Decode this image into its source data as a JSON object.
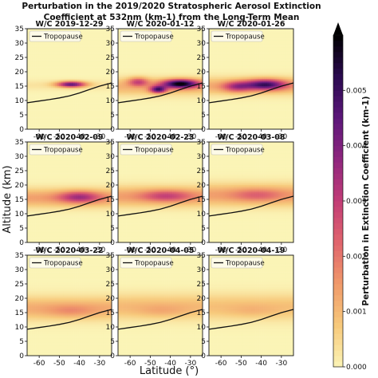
{
  "chart_data": {
    "type": "heatmap",
    "title_lines": [
      "Perturbation in the 2019/2020 Stratospheric Aerosol Extinction",
      "Coefficient at 532nm (km-1) from the Long-Term Mean"
    ],
    "xlabel": "Latitude (°)",
    "ylabel": "Altitude (km)",
    "xlim": [
      -66,
      -24
    ],
    "ylim": [
      0,
      35
    ],
    "x_ticks": [
      -60,
      -50,
      -40,
      -30
    ],
    "y_ticks": [
      0,
      5,
      10,
      15,
      20,
      25,
      30,
      35
    ],
    "colorbar": {
      "label": "Perturbation in Extinction Coefficient (km-1)",
      "range": [
        0,
        0.006
      ],
      "ticks": [
        "0.000",
        "0.001",
        "0.002",
        "0.003",
        "0.004",
        "0.005"
      ],
      "colors": [
        "#fbf4b6",
        "#f7c97b",
        "#f09a6a",
        "#e0656d",
        "#c23d76",
        "#8f267e",
        "#5c177a",
        "#2a0a4f",
        "#000000"
      ]
    },
    "legend_label": "Tropopause",
    "tropopause": {
      "lat": [
        -66,
        -60,
        -55,
        -50,
        -45,
        -40,
        -35,
        -30,
        -24
      ],
      "alt": [
        9.2,
        9.8,
        10.3,
        10.9,
        11.6,
        12.6,
        13.8,
        15.0,
        16.1
      ]
    },
    "panels": [
      {
        "label": "W/C 2019-12-29",
        "layer_center": 15.3,
        "layer_width": 1.8,
        "background": 0.0003,
        "blobs": [
          {
            "lat": -44,
            "alt": 15.6,
            "amp": 0.0042,
            "sx": 7,
            "sy": 1.0
          }
        ]
      },
      {
        "label": "W/C 2020-01-12",
        "layer_center": 14.8,
        "layer_width": 3.0,
        "background": 0.0011,
        "blobs": [
          {
            "lat": -35,
            "alt": 15.8,
            "amp": 0.0052,
            "sx": 9,
            "sy": 1.5
          },
          {
            "lat": -46,
            "alt": 13.8,
            "amp": 0.004,
            "sx": 4,
            "sy": 1.2
          },
          {
            "lat": -56,
            "alt": 16.5,
            "amp": 0.0022,
            "sx": 5,
            "sy": 1.5
          }
        ]
      },
      {
        "label": "W/C 2020-01-26",
        "layer_center": 15.0,
        "layer_width": 3.0,
        "background": 0.0012,
        "blobs": [
          {
            "lat": -38,
            "alt": 15.5,
            "amp": 0.004,
            "sx": 10,
            "sy": 1.8
          },
          {
            "lat": -52,
            "alt": 14.8,
            "amp": 0.0022,
            "sx": 7,
            "sy": 1.8
          }
        ]
      },
      {
        "label": "W/C 2020-02-09",
        "layer_center": 15.5,
        "layer_width": 3.2,
        "background": 0.0014,
        "blobs": [
          {
            "lat": -40,
            "alt": 15.8,
            "amp": 0.0022,
            "sx": 10,
            "sy": 2.0
          }
        ]
      },
      {
        "label": "W/C 2020-02-23",
        "layer_center": 16.0,
        "layer_width": 3.5,
        "background": 0.0014,
        "blobs": [
          {
            "lat": -42,
            "alt": 16.2,
            "amp": 0.0016,
            "sx": 12,
            "sy": 2.0
          }
        ]
      },
      {
        "label": "W/C 2020-03-08",
        "layer_center": 16.5,
        "layer_width": 3.8,
        "background": 0.0014,
        "blobs": [
          {
            "lat": -42,
            "alt": 16.5,
            "amp": 0.001,
            "sx": 12,
            "sy": 2.2
          }
        ]
      },
      {
        "label": "W/C 2020-03-22",
        "layer_center": 16.5,
        "layer_width": 4.0,
        "background": 0.0012,
        "blobs": [
          {
            "lat": -44,
            "alt": 15.5,
            "amp": 0.0006,
            "sx": 12,
            "sy": 2.2
          }
        ]
      },
      {
        "label": "W/C 2020-04-05",
        "layer_center": 17.0,
        "layer_width": 4.3,
        "background": 0.001,
        "blobs": [
          {
            "lat": -44,
            "alt": 15.5,
            "amp": 0.0004,
            "sx": 12,
            "sy": 2.2
          }
        ]
      },
      {
        "label": "W/C 2020-04-19",
        "layer_center": 17.0,
        "layer_width": 4.5,
        "background": 0.0009,
        "blobs": [
          {
            "lat": -44,
            "alt": 15.5,
            "amp": 0.0003,
            "sx": 12,
            "sy": 2.2
          }
        ]
      }
    ]
  }
}
